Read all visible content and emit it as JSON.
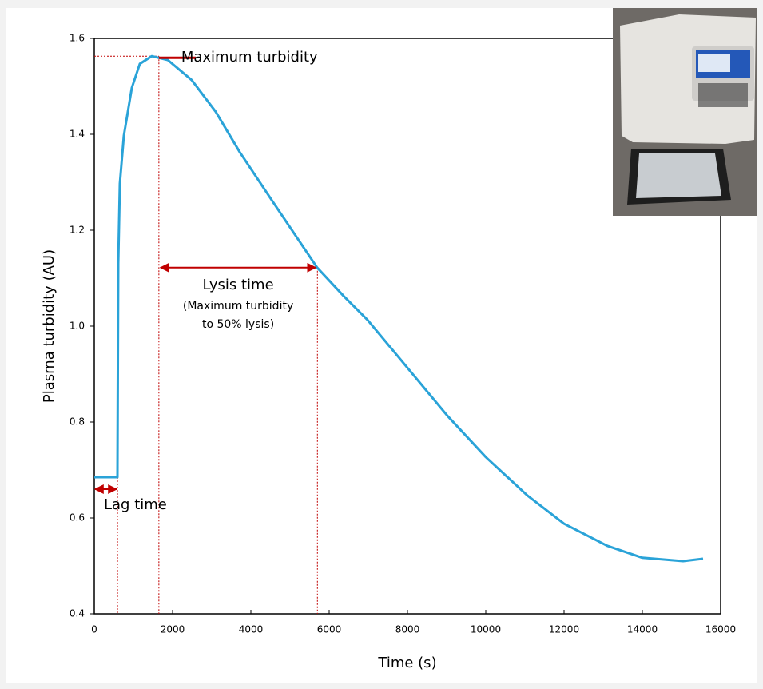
{
  "chart_data": {
    "type": "line",
    "x_label": "Time (s)",
    "y_label": "Plasma turbidity (AU)",
    "xlim": [
      0,
      16000
    ],
    "ylim": [
      0.4,
      1.6
    ],
    "xticks": [
      0,
      2000,
      4000,
      6000,
      8000,
      10000,
      12000,
      14000,
      16000
    ],
    "yticks": [
      0.4,
      0.6,
      0.8,
      {
        "value": 1,
        "label": "1.0"
      },
      1.2,
      1.4,
      1.6
    ],
    "series": [
      {
        "color": "#2aa3d8",
        "x": [
          0,
          592,
          612,
          653,
          755,
          959,
          1163,
          1469,
          1878,
          2490,
          3102,
          3714,
          4531,
          5694,
          6367,
          6980,
          8000,
          9020,
          10000,
          11061,
          12000,
          13102,
          14000,
          15041,
          15551
        ],
        "values": [
          0.685,
          0.685,
          1.13,
          1.297,
          1.397,
          1.497,
          1.547,
          1.563,
          1.555,
          1.513,
          1.447,
          1.363,
          1.263,
          1.122,
          1.063,
          1.013,
          0.913,
          0.813,
          0.727,
          0.647,
          0.588,
          0.542,
          0.517,
          0.51,
          0.515
        ]
      }
    ],
    "markers": {
      "lag_end_x": 592,
      "peak_x": 1650,
      "peak_y": 1.563,
      "lysis_end_x": 5700,
      "lysis_y": 1.122,
      "lag_arrow_y": 0.66
    },
    "annotations": {
      "max_turbidity": "Maximum turbidity",
      "lysis_time": "Lysis time",
      "lysis_note_1": "(Maximum turbidity",
      "lysis_note_2": "to 50% lysis)",
      "lag_time": "Lag time"
    }
  }
}
